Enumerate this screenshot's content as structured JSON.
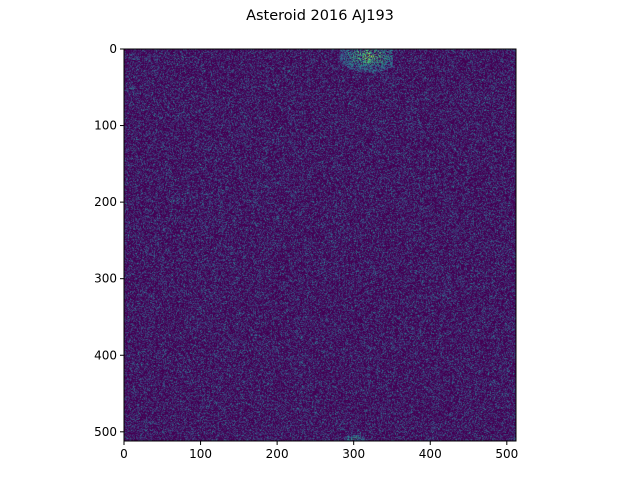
{
  "chart_data": {
    "type": "heatmap",
    "title": "Asteroid 2016 AJ193",
    "xlabel": "",
    "ylabel": "",
    "image_size": [
      512,
      512
    ],
    "xlim": [
      0,
      512
    ],
    "ylim": [
      512,
      0
    ],
    "x_ticks": [
      "0",
      "100",
      "200",
      "300",
      "400",
      "500"
    ],
    "y_ticks": [
      "0",
      "100",
      "200",
      "300",
      "400",
      "500"
    ],
    "colormap": "viridis",
    "background": "noise",
    "features": [
      {
        "name": "bright-arc",
        "x_center": 320,
        "y_center": 8,
        "extent_x": [
          270,
          350
        ],
        "extent_y": [
          0,
          45
        ],
        "level": 0.9
      },
      {
        "name": "bottom-blob",
        "x_center": 300,
        "y_center": 508,
        "extent_x": [
          285,
          315
        ],
        "extent_y": [
          502,
          512
        ],
        "level": 0.7
      }
    ],
    "grid": false,
    "legend": "none"
  },
  "colors": {
    "low": "#440154",
    "mid": "#3b528b",
    "teal": "#21918c",
    "green": "#5ec962",
    "high": "#fde725"
  }
}
